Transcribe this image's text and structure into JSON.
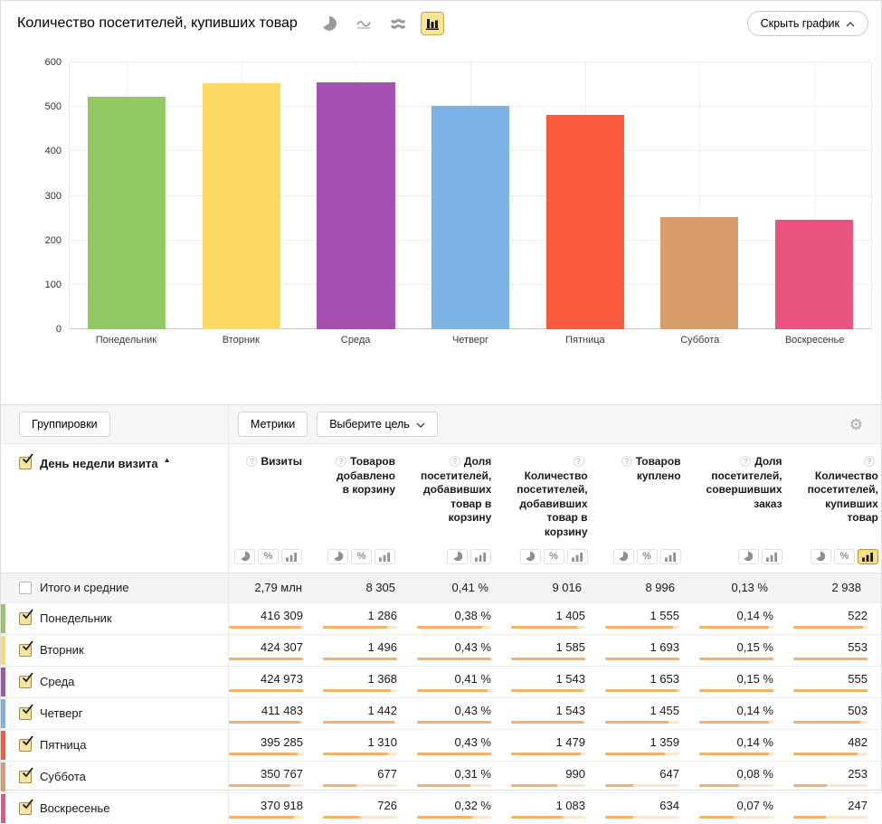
{
  "header": {
    "title": "Количество посетителей, купивших товар",
    "hide_chart_label": "Скрыть график",
    "chart_type_icons": [
      "pie-chart-icon",
      "line-chart-icon",
      "stacked-area-icon",
      "bar-chart-icon"
    ],
    "selected_chart_type": "bar-chart-icon"
  },
  "chart_data": {
    "type": "bar",
    "title": "Количество посетителей, купивших товар",
    "categories": [
      "Понедельник",
      "Вторник",
      "Среда",
      "Четверг",
      "Пятница",
      "Суббота",
      "Воскресенье"
    ],
    "values": [
      522,
      553,
      555,
      503,
      482,
      253,
      247
    ],
    "colors": [
      "#92c962",
      "#fdd964",
      "#a750b1",
      "#7ab4e6",
      "#fb593c",
      "#d89d69",
      "#e8547e"
    ],
    "xlabel": "",
    "ylabel": "",
    "ylim": [
      0,
      600
    ],
    "yticks": [
      0,
      100,
      200,
      300,
      400,
      500,
      600
    ],
    "grid": true,
    "legend": "none"
  },
  "controls": {
    "groupings_label": "Группировки",
    "metrics_label": "Метрики",
    "goal_label": "Выберите цель",
    "settings_icon": "gear-icon"
  },
  "table": {
    "dimension_header": "День недели визита",
    "sort_icon": "sort-asc-icon",
    "columns": [
      {
        "title": "Визиты",
        "toggles": [
          "pie",
          "percent",
          "bar"
        ],
        "selected_toggle": null
      },
      {
        "title": "Товаров добавлено в корзину",
        "toggles": [
          "pie",
          "percent",
          "bar"
        ],
        "selected_toggle": null
      },
      {
        "title": "Доля посетителей, добавивших товар в корзину",
        "toggles": [
          "pie",
          "bar"
        ],
        "selected_toggle": null
      },
      {
        "title": "Количество посетителей, добавивших товар в корзину",
        "toggles": [
          "pie",
          "percent",
          "bar"
        ],
        "selected_toggle": null
      },
      {
        "title": "Товаров куплено",
        "toggles": [
          "pie",
          "percent",
          "bar"
        ],
        "selected_toggle": null
      },
      {
        "title": "Доля посетителей, совершивших заказ",
        "toggles": [
          "pie",
          "bar"
        ],
        "selected_toggle": null
      },
      {
        "title": "Количество посетителей, купивших товар",
        "toggles": [
          "pie",
          "percent",
          "bar"
        ],
        "selected_toggle": "bar"
      }
    ],
    "totals": {
      "label": "Итого и средние",
      "checked": false,
      "values": [
        "2,79 млн",
        "8 305",
        "0,41 %",
        "9 016",
        "8 996",
        "0,13 %",
        "2 938"
      ]
    },
    "rows": [
      {
        "label": "Понедельник",
        "color": "#92c962",
        "checked": true,
        "values": [
          "416 309",
          "1 286",
          "0,38 %",
          "1 405",
          "1 555",
          "0,14 %",
          "522"
        ],
        "fractions": [
          0.98,
          0.86,
          0.884,
          0.886,
          0.918,
          0.933,
          0.941
        ]
      },
      {
        "label": "Вторник",
        "color": "#fdd964",
        "checked": true,
        "values": [
          "424 307",
          "1 496",
          "0,43 %",
          "1 585",
          "1 693",
          "0,15 %",
          "553"
        ],
        "fractions": [
          0.998,
          1.0,
          1.0,
          1.0,
          1.0,
          1.0,
          0.996
        ]
      },
      {
        "label": "Среда",
        "color": "#a750b1",
        "checked": true,
        "values": [
          "424 973",
          "1 368",
          "0,41 %",
          "1 543",
          "1 653",
          "0,15 %",
          "555"
        ],
        "fractions": [
          1.0,
          0.914,
          0.953,
          0.974,
          0.976,
          1.0,
          1.0
        ]
      },
      {
        "label": "Четверг",
        "color": "#7ab4e6",
        "checked": true,
        "values": [
          "411 483",
          "1 442",
          "0,43 %",
          "1 543",
          "1 455",
          "0,14 %",
          "503"
        ],
        "fractions": [
          0.968,
          0.964,
          1.0,
          0.974,
          0.859,
          0.933,
          0.906
        ]
      },
      {
        "label": "Пятница",
        "color": "#fb593c",
        "checked": true,
        "values": [
          "395 285",
          "1 310",
          "0,43 %",
          "1 479",
          "1 359",
          "0,14 %",
          "482"
        ],
        "fractions": [
          0.93,
          0.876,
          1.0,
          0.933,
          0.803,
          0.933,
          0.868
        ]
      },
      {
        "label": "Суббота",
        "color": "#d89d69",
        "checked": true,
        "values": [
          "350 767",
          "677",
          "0,31 %",
          "990",
          "647",
          "0,08 %",
          "253"
        ],
        "fractions": [
          0.825,
          0.452,
          0.721,
          0.625,
          0.382,
          0.533,
          0.456
        ]
      },
      {
        "label": "Воскресенье",
        "color": "#e8547e",
        "checked": true,
        "values": [
          "370 918",
          "726",
          "0,32 %",
          "1 083",
          "634",
          "0,07 %",
          "247"
        ],
        "fractions": [
          0.873,
          0.485,
          0.744,
          0.683,
          0.374,
          0.467,
          0.445
        ]
      }
    ]
  },
  "colors": {
    "selected_accent_bg": "#fbe590",
    "selected_accent_border": "#c9a94f",
    "minibar_fill": "#f5b168",
    "minibar_track": "#fbe7cb",
    "checkbox_checked_bg": "#f7e49d",
    "totals_row_bg": "#f4f4f2",
    "controls_bg": "#f6f6f4"
  }
}
